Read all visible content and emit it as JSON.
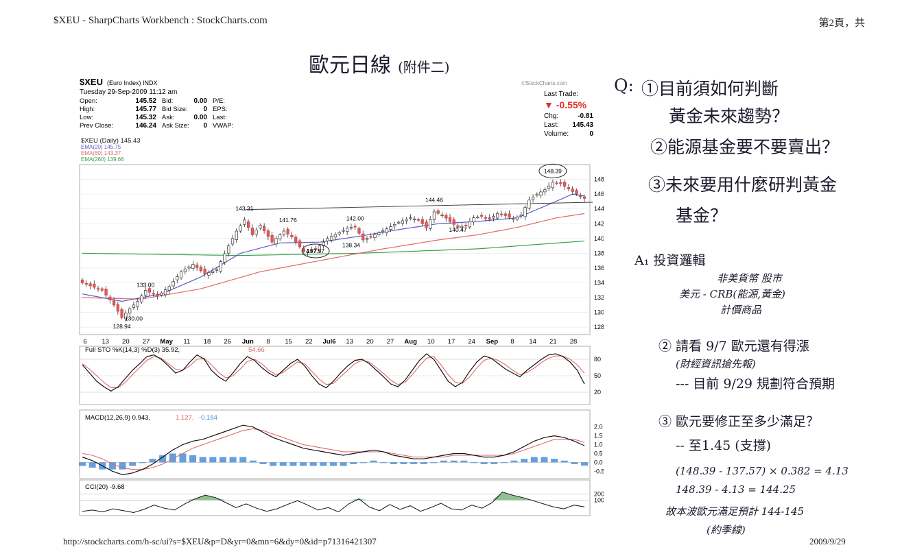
{
  "print_header": {
    "left": "$XEU - SharpCharts Workbench : StockCharts.com",
    "right": "第2頁，共"
  },
  "print_footer": {
    "url": "http://stockcharts.com/h-sc/ui?s=$XEU&p=D&yr=0&mn=6&dy=0&id=p71316421307",
    "date": "2009/9/29"
  },
  "handwritten_title": {
    "main": "歐元日線",
    "sub": "(附件二)"
  },
  "chart_header": {
    "symbol": "$XEU",
    "name": "(Euro Index) INDX",
    "datetime": "Tuesday 29-Sep-2009 11:12 am",
    "brand": "©StockCharts.com",
    "rows": [
      {
        "label": "Open:",
        "value": "145.52",
        "label2": "Bid:",
        "value2": "0.00",
        "label3": "P/E:"
      },
      {
        "label": "High:",
        "value": "145.77",
        "label2": "Bid Size:",
        "value2": "0",
        "label3": "EPS:"
      },
      {
        "label": "Low:",
        "value": "145.32",
        "label2": "Ask:",
        "value2": "0.00",
        "label3": "Last:"
      },
      {
        "label": "Prev Close:",
        "value": "146.24",
        "label2": "Ask Size:",
        "value2": "0",
        "label3": "VWAP:"
      }
    ],
    "last_trade_label": "Last Trade:",
    "last_trade_pct": "▼ -0.55%",
    "chg_label": "Chg:",
    "chg_value": "-0.81",
    "last_label": "Last:",
    "last_value": "145.43",
    "volume_label": "Volume:",
    "volume_value": "0"
  },
  "chart_data": {
    "type": "candlestick",
    "legend": [
      {
        "text": "$XEU (Daily) 145.43",
        "color": "#222222"
      },
      {
        "text": "EMA(20) 145.75",
        "color": "#5b5bc8"
      },
      {
        "text": "EMA(60) 143.37",
        "color": "#e06a6a"
      },
      {
        "text": "EMA(260) 139.66",
        "color": "#3aa04a"
      }
    ],
    "y_ticks": [
      128,
      130,
      132,
      134,
      136,
      138,
      140,
      142,
      144,
      146,
      148
    ],
    "ylim": [
      127,
      150
    ],
    "x_ticks": [
      "6",
      "13",
      "20",
      "27",
      "May",
      "11",
      "18",
      "26",
      "Jun",
      "8",
      "15",
      "22",
      "Jul6",
      "13",
      "20",
      "27",
      "Aug",
      "10",
      "17",
      "24",
      "Sep",
      "8",
      "14",
      "21",
      "28"
    ],
    "annotations": [
      {
        "text": "148.39",
        "i": 119,
        "price": 148.39
      },
      {
        "text": "144.46",
        "i": 89,
        "price": 144.46
      },
      {
        "text": "143.31",
        "i": 41,
        "price": 143.31
      },
      {
        "text": "142.00",
        "i": 69,
        "price": 142.0
      },
      {
        "text": "141.76",
        "i": 52,
        "price": 141.76
      },
      {
        "text": "140.47",
        "i": 95,
        "price": 140.47
      },
      {
        "text": "138.34",
        "i": 68,
        "price": 138.34
      },
      {
        "text": "137.57",
        "i": 59,
        "price": 137.57
      },
      {
        "text": "133.00",
        "i": 16,
        "price": 133.0
      },
      {
        "text": "130.00",
        "i": 13,
        "price": 130.0
      },
      {
        "text": "128.94",
        "i": 10,
        "price": 128.94
      }
    ],
    "price_path": [
      [
        0,
        134.0
      ],
      [
        5,
        133.0
      ],
      [
        8,
        131.0
      ],
      [
        10,
        129.3
      ],
      [
        12,
        130.5
      ],
      [
        14,
        131.5
      ],
      [
        16,
        133.0
      ],
      [
        19,
        132.2
      ],
      [
        22,
        133.5
      ],
      [
        25,
        135.5
      ],
      [
        28,
        136.5
      ],
      [
        31,
        135.2
      ],
      [
        34,
        135.8
      ],
      [
        37,
        139.0
      ],
      [
        39,
        141.0
      ],
      [
        41,
        142.5
      ],
      [
        43,
        140.5
      ],
      [
        45,
        141.8
      ],
      [
        48,
        139.5
      ],
      [
        51,
        141.0
      ],
      [
        53,
        140.2
      ],
      [
        56,
        138.2
      ],
      [
        59,
        138.5
      ],
      [
        62,
        140.0
      ],
      [
        65,
        140.8
      ],
      [
        67,
        141.4
      ],
      [
        69,
        141.6
      ],
      [
        71,
        139.8
      ],
      [
        74,
        140.5
      ],
      [
        77,
        141.3
      ],
      [
        80,
        142.2
      ],
      [
        83,
        142.8
      ],
      [
        85,
        142.5
      ],
      [
        87,
        141.5
      ],
      [
        89,
        143.6
      ],
      [
        91,
        143.2
      ],
      [
        93,
        142.3
      ],
      [
        95,
        141.5
      ],
      [
        97,
        141.8
      ],
      [
        99,
        142.8
      ],
      [
        101,
        143.0
      ],
      [
        103,
        142.6
      ],
      [
        105,
        143.4
      ],
      [
        107,
        143.1
      ],
      [
        109,
        142.6
      ],
      [
        111,
        143.2
      ],
      [
        113,
        145.2
      ],
      [
        115,
        146.0
      ],
      [
        117,
        146.6
      ],
      [
        119,
        147.6
      ],
      [
        121,
        147.4
      ],
      [
        123,
        146.7
      ],
      [
        125,
        146.0
      ],
      [
        127,
        145.43
      ]
    ],
    "ema20_path": [
      [
        0,
        132.5
      ],
      [
        10,
        131.5
      ],
      [
        20,
        132.5
      ],
      [
        30,
        134.8
      ],
      [
        40,
        138.0
      ],
      [
        50,
        139.4
      ],
      [
        60,
        139.5
      ],
      [
        70,
        140.3
      ],
      [
        80,
        141.2
      ],
      [
        90,
        142.0
      ],
      [
        100,
        142.3
      ],
      [
        110,
        142.8
      ],
      [
        118,
        144.6
      ],
      [
        124,
        146.0
      ],
      [
        127,
        145.75
      ]
    ],
    "ema60_path": [
      [
        0,
        132.0
      ],
      [
        15,
        131.8
      ],
      [
        30,
        133.2
      ],
      [
        45,
        135.5
      ],
      [
        60,
        137.0
      ],
      [
        75,
        138.5
      ],
      [
        90,
        139.8
      ],
      [
        100,
        140.5
      ],
      [
        110,
        141.5
      ],
      [
        120,
        142.8
      ],
      [
        127,
        143.37
      ]
    ],
    "ema260_path": [
      [
        0,
        138.0
      ],
      [
        40,
        137.7
      ],
      [
        70,
        138.0
      ],
      [
        100,
        138.6
      ],
      [
        127,
        139.66
      ]
    ],
    "trendline": {
      "from": [
        41,
        143.9
      ],
      "to": [
        127,
        144.9
      ]
    },
    "sto": {
      "label": "Full STO %K(14,3) %D(3) 35.92,",
      "label_red": "54.66",
      "ticks": [
        20,
        50,
        80
      ],
      "k": [
        70,
        55,
        40,
        30,
        22,
        30,
        45,
        60,
        72,
        85,
        88,
        80,
        68,
        55,
        60,
        75,
        88,
        80,
        60,
        48,
        40,
        55,
        72,
        85,
        78,
        65,
        55,
        48,
        60,
        72,
        80,
        68,
        50,
        35,
        28,
        40,
        55,
        68,
        78,
        80,
        72,
        60,
        48,
        35,
        30,
        42,
        60,
        78,
        90,
        80,
        60,
        40,
        30,
        38,
        58,
        75,
        86,
        82,
        72,
        62,
        55,
        48,
        60,
        70,
        80,
        88,
        90,
        85,
        75,
        60,
        35
      ],
      "d": [
        72,
        62,
        50,
        38,
        28,
        28,
        38,
        52,
        65,
        78,
        85,
        82,
        72,
        62,
        60,
        68,
        80,
        82,
        70,
        56,
        46,
        50,
        62,
        76,
        80,
        72,
        60,
        52,
        56,
        66,
        75,
        72,
        58,
        44,
        34,
        36,
        48,
        60,
        72,
        78,
        75,
        65,
        54,
        42,
        34,
        38,
        52,
        68,
        82,
        85,
        70,
        52,
        38,
        36,
        48,
        64,
        78,
        82,
        78,
        70,
        60,
        52,
        56,
        64,
        74,
        82,
        86,
        86,
        80,
        70,
        54.66
      ]
    },
    "macd": {
      "label": "MACD(12,26,9) 0.943,",
      "label_red": "1.127,",
      "label_blue": "-0.184",
      "ticks": [
        2.0,
        1.5,
        1.0,
        0.5,
        0.0,
        -0.5
      ],
      "line": [
        0.3,
        0.1,
        -0.2,
        -0.5,
        -0.7,
        -0.6,
        -0.4,
        -0.1,
        0.3,
        0.7,
        1.0,
        1.2,
        1.3,
        1.5,
        1.7,
        1.9,
        2.1,
        2.0,
        1.7,
        1.4,
        1.2,
        1.0,
        0.8,
        0.7,
        0.6,
        0.5,
        0.4,
        0.5,
        0.6,
        0.7,
        0.6,
        0.4,
        0.3,
        0.2,
        0.2,
        0.3,
        0.4,
        0.5,
        0.5,
        0.4,
        0.3,
        0.3,
        0.4,
        0.6,
        0.9,
        1.2,
        1.4,
        1.5,
        1.4,
        1.2,
        0.943
      ],
      "signal": [
        0.5,
        0.4,
        0.2,
        -0.1,
        -0.3,
        -0.4,
        -0.4,
        -0.3,
        -0.1,
        0.2,
        0.5,
        0.8,
        1.0,
        1.2,
        1.4,
        1.6,
        1.8,
        1.9,
        1.8,
        1.6,
        1.4,
        1.2,
        1.0,
        0.9,
        0.8,
        0.7,
        0.6,
        0.6,
        0.6,
        0.6,
        0.6,
        0.5,
        0.4,
        0.3,
        0.3,
        0.3,
        0.3,
        0.4,
        0.4,
        0.4,
        0.4,
        0.4,
        0.4,
        0.5,
        0.7,
        0.9,
        1.1,
        1.3,
        1.3,
        1.3,
        1.127
      ]
    },
    "cci": {
      "label": "CCI(20) -9.68",
      "ticks": [
        200,
        100
      ],
      "values": [
        -80,
        -60,
        -90,
        -40,
        -70,
        -100,
        -50,
        20,
        -30,
        -60,
        40,
        120,
        180,
        140,
        60,
        -20,
        40,
        -30,
        -80,
        -40,
        30,
        90,
        20,
        -60,
        -20,
        -90,
        40,
        120,
        -10,
        -70,
        30,
        -50,
        10,
        -80,
        -20,
        50,
        -40,
        -60,
        20,
        -30,
        60,
        230,
        180,
        140,
        90,
        40,
        -10,
        -40,
        20,
        -9.68
      ]
    }
  },
  "questions": {
    "q_prefix": "Q:",
    "q1": "①目前須如何判斷",
    "q1b": "黃金未來趨勢？",
    "q2": "②能源基金要不要賣出？",
    "q3": "③未來要用什麼研判黃金",
    "q3b": "基金？"
  },
  "answers": {
    "a_title": "A₁ 投資邏輯",
    "a1_top": "非美貨幣 股市",
    "a1_mid": "美元 - CRB(能源,黃金)",
    "a1_bot": "計價商品",
    "a2": "② 請看 9/7 歐元還有得漲",
    "a2b": "(財經資訊搶先報)",
    "a2c": "--- 目前 9/29 規劃符合預期",
    "a3": "③ 歐元要修正至多少滿足？",
    "a3b": "-- 至1.45 (支撐)",
    "calc1": "(148.39 - 137.57) × 0.382 = 4.13",
    "calc2": "148.39 - 4.13 = 144.25",
    "conclusion": "故本波歐元滿足預計 144-145",
    "conclusion2": "(約季線)"
  }
}
